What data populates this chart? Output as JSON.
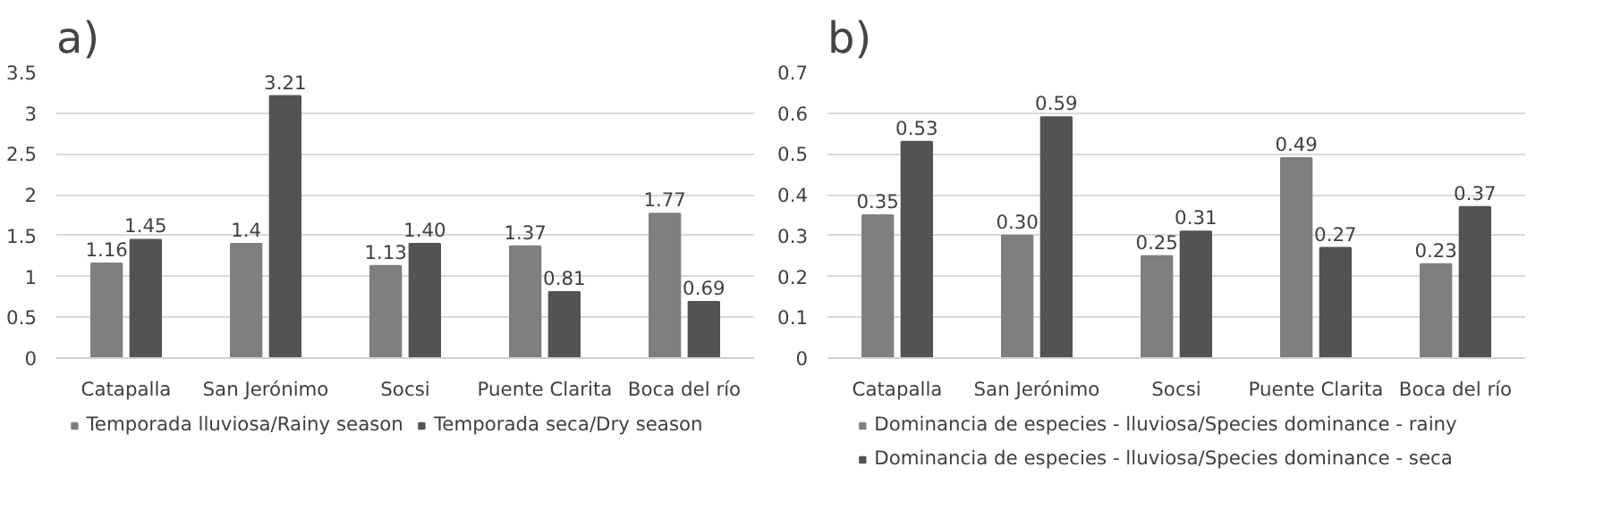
{
  "chart_data": [
    {
      "type": "bar",
      "title": "a)",
      "categories": [
        "Catapalla",
        "San Jerónimo",
        "Socsi",
        "Puente Clarita",
        "Boca del río"
      ],
      "series": [
        {
          "name": "Temporada lluviosa/Rainy season",
          "color": "#7f7f7f",
          "values": [
            1.16,
            1.4,
            1.13,
            1.37,
            1.77
          ],
          "value_labels": [
            "1.16",
            "1.4",
            "1.13",
            "1.37",
            "1.77"
          ]
        },
        {
          "name": "Temporada seca/Dry season",
          "color": "#535353",
          "values": [
            1.45,
            3.21,
            1.4,
            0.81,
            0.69
          ],
          "value_labels": [
            "1.45",
            "3.21",
            "1.40",
            "0.81",
            "0.69"
          ]
        }
      ],
      "ylim": [
        0,
        3.5
      ],
      "yticks": [
        0,
        0.5,
        1,
        1.5,
        2,
        2.5,
        3,
        3.5
      ],
      "grid": "y",
      "legend": "bottom"
    },
    {
      "type": "bar",
      "title": "b)",
      "categories": [
        "Catapalla",
        "San Jerónimo",
        "Socsi",
        "Puente Clarita",
        "Boca del río"
      ],
      "series": [
        {
          "name": "Dominancia de especies - lluviosa/Species dominance - rainy",
          "color": "#7f7f7f",
          "values": [
            0.35,
            0.3,
            0.25,
            0.49,
            0.23
          ],
          "value_labels": [
            "0.35",
            "0.30",
            "0.25",
            "0.49",
            "0.23"
          ]
        },
        {
          "name": "Dominancia de especies - lluviosa/Species dominance - seca",
          "color": "#535353",
          "values": [
            0.53,
            0.59,
            0.31,
            0.27,
            0.37
          ],
          "value_labels": [
            "0.53",
            "0.59",
            "0.31",
            "0.27",
            "0.37"
          ]
        }
      ],
      "ylim": [
        0,
        0.7
      ],
      "yticks": [
        0,
        0.1,
        0.2,
        0.3,
        0.4,
        0.5,
        0.6,
        0.7
      ],
      "grid": "y",
      "legend": "bottom"
    }
  ]
}
